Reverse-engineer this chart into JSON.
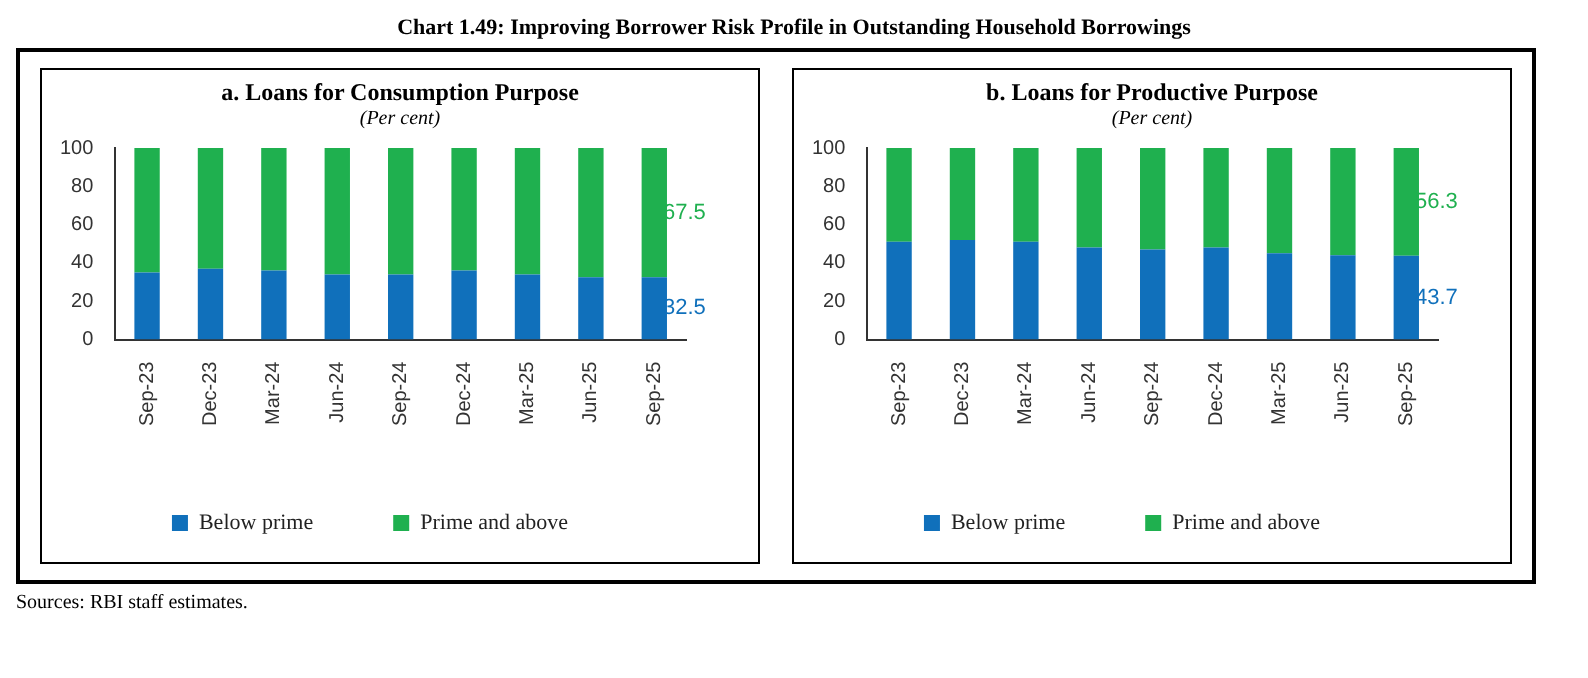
{
  "chart_data": [
    {
      "type": "bar",
      "title": "a. Loans for Consumption Purpose",
      "subtitle": "(Per cent)",
      "annotations": [
        "Chart 1.49: Improving Borrower Risk Profile in Outstanding Household Borrowings",
        "Sources: RBI staff estimates."
      ],
      "categories": [
        "Sep-23",
        "Dec-23",
        "Mar-24",
        "Jun-24",
        "Sep-24",
        "Dec-24",
        "Mar-25",
        "Jun-25",
        "Sep-25"
      ],
      "stacked": true,
      "ylim": [
        0,
        100
      ],
      "yticks": [
        0,
        20,
        40,
        60,
        80,
        100
      ],
      "grid": false,
      "legend": "bottom",
      "series": [
        {
          "name": "Below prime",
          "color": "#1070bb",
          "values": [
            35,
            37,
            36,
            34,
            34,
            36,
            34,
            32.5,
            32.5
          ],
          "value_labels": [
            null,
            null,
            null,
            null,
            null,
            null,
            null,
            null,
            "32.5"
          ]
        },
        {
          "name": "Prime and above",
          "color": "#1fb04f",
          "values": [
            65,
            63,
            64,
            66,
            66,
            64,
            66,
            67.5,
            67.5
          ],
          "value_labels": [
            null,
            null,
            null,
            null,
            null,
            null,
            null,
            null,
            "67.5"
          ]
        }
      ]
    },
    {
      "type": "bar",
      "title": "b. Loans for Productive Purpose",
      "subtitle": "(Per cent)",
      "categories": [
        "Sep-23",
        "Dec-23",
        "Mar-24",
        "Jun-24",
        "Sep-24",
        "Dec-24",
        "Mar-25",
        "Jun-25",
        "Sep-25"
      ],
      "stacked": true,
      "ylim": [
        0,
        100
      ],
      "yticks": [
        0,
        20,
        40,
        60,
        80,
        100
      ],
      "grid": false,
      "legend": "bottom",
      "series": [
        {
          "name": "Below prime",
          "color": "#1070bb",
          "values": [
            51,
            52,
            51,
            48,
            47,
            48,
            45,
            44,
            43.7
          ],
          "value_labels": [
            null,
            null,
            null,
            null,
            null,
            null,
            null,
            null,
            "43.7"
          ]
        },
        {
          "name": "Prime and above",
          "color": "#1fb04f",
          "values": [
            49,
            48,
            49,
            52,
            53,
            52,
            55,
            56,
            56.3
          ],
          "value_labels": [
            null,
            null,
            null,
            null,
            null,
            null,
            null,
            null,
            "56.3"
          ]
        }
      ]
    }
  ]
}
